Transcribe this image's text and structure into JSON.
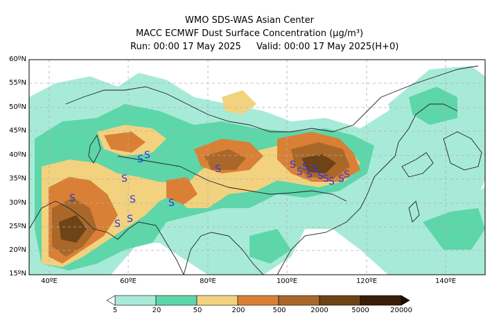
{
  "header": {
    "line1": "WMO SDS-WAS Asian Center",
    "line2": "MACC ECMWF Dust Surface Concentration (μg/m³)",
    "run": "Run: 00:00 17 May 2025",
    "valid": "Valid: 00:00 17 May 2025(H+0)"
  },
  "map": {
    "lat_labels": [
      "60ºN",
      "55ºN",
      "50ºN",
      "45ºN",
      "40ºN",
      "35ºN",
      "30ºN",
      "25ºN",
      "20ºN",
      "15ºN"
    ],
    "lon_labels": [
      "40ºE",
      "60ºE",
      "80ºE",
      "100ºE",
      "120ºE",
      "140ºE"
    ],
    "extent": {
      "lon_min": 35,
      "lon_max": 150,
      "lat_min": 15,
      "lat_max": 60
    },
    "dust_storm_symbol": "S",
    "colors": {
      "c5_20": "#a8ead8",
      "c20_50": "#5dd6aa",
      "c50_200": "#f2d27e",
      "c200_500": "#d98036",
      "c500_2000": "#a9682a",
      "c2000_5000": "#6e4316",
      "c5000_20000": "#3a1e08",
      "symbol": "#3333dd"
    }
  },
  "colorbar": {
    "labels": [
      "5",
      "20",
      "50",
      "200",
      "500",
      "2000",
      "5000",
      "20000"
    ],
    "colors": [
      "#a8ead8",
      "#5dd6aa",
      "#f2d27e",
      "#d98036",
      "#a9682a",
      "#6e4316",
      "#3a1e08"
    ]
  }
}
